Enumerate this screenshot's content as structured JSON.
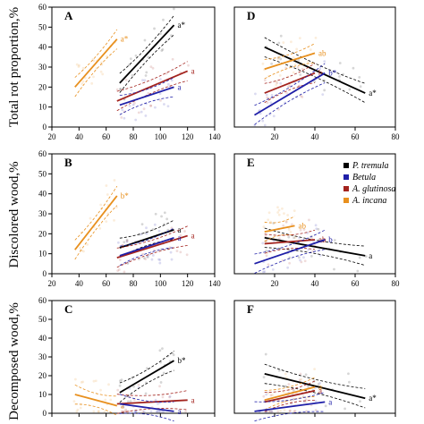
{
  "figure": {
    "ylabels": [
      "Total rot proportion,%",
      "Discolored wood,%",
      "Decomposed wood,%"
    ],
    "legend": [
      {
        "label": "P. tremula",
        "color": "#000000"
      },
      {
        "label": "Betula",
        "color": "#1f1fa8"
      },
      {
        "label": "A. glutinosa",
        "color": "#a3231e"
      },
      {
        "label": "A. incana",
        "color": "#e8901e"
      }
    ]
  },
  "chart_data": [
    {
      "panel": "A",
      "type": "scatter",
      "xlim": [
        20,
        140
      ],
      "ylim": [
        0,
        60
      ],
      "xticks": [
        "20",
        "40",
        "60",
        "80",
        "100",
        "120",
        "140"
      ],
      "yticks": [
        "0",
        "10",
        "20",
        "30",
        "40",
        "50",
        "60"
      ],
      "series": [
        {
          "name": "A. incana",
          "color": "#e8901e",
          "x": [
            37,
            68
          ],
          "y": [
            20,
            44
          ],
          "sig": "a*"
        },
        {
          "name": "P. tremula",
          "color": "#000000",
          "x": [
            70,
            110
          ],
          "y": [
            22,
            51
          ],
          "sig": "a*"
        },
        {
          "name": "A. glutinosa",
          "color": "#a3231e",
          "x": [
            68,
            120
          ],
          "y": [
            13,
            28
          ],
          "sig": "a"
        },
        {
          "name": "Betula",
          "color": "#1f1fa8",
          "x": [
            70,
            110
          ],
          "y": [
            11,
            20
          ],
          "sig": "a"
        }
      ]
    },
    {
      "panel": "D",
      "type": "scatter",
      "xlim": [
        0,
        80
      ],
      "ylim": [
        0,
        60
      ],
      "xticks": [
        "20",
        "40",
        "60",
        "80"
      ],
      "yticks": [],
      "series": [
        {
          "name": "P. tremula",
          "color": "#000000",
          "x": [
            15,
            65
          ],
          "y": [
            40,
            17
          ],
          "sig": "a*"
        },
        {
          "name": "A. incana",
          "color": "#e8901e",
          "x": [
            15,
            40
          ],
          "y": [
            29,
            37
          ],
          "sig": "ab"
        },
        {
          "name": "A. glutinosa",
          "color": "#a3231e",
          "x": [
            15,
            40
          ],
          "y": [
            17,
            27
          ],
          "sig": "b"
        },
        {
          "name": "Betula",
          "color": "#1f1fa8",
          "x": [
            10,
            45
          ],
          "y": [
            6,
            27
          ],
          "sig": "b*"
        }
      ]
    },
    {
      "panel": "B",
      "type": "scatter",
      "xlim": [
        20,
        140
      ],
      "ylim": [
        0,
        60
      ],
      "xticks": [
        "20",
        "40",
        "60",
        "80",
        "100",
        "120",
        "140"
      ],
      "yticks": [
        "0",
        "10",
        "20",
        "30",
        "40",
        "50",
        "60"
      ],
      "series": [
        {
          "name": "A. incana",
          "color": "#e8901e",
          "x": [
            37,
            68
          ],
          "y": [
            12,
            39
          ],
          "sig": "b*"
        },
        {
          "name": "P. tremula",
          "color": "#000000",
          "x": [
            70,
            110
          ],
          "y": [
            13,
            22
          ],
          "sig": "a"
        },
        {
          "name": "A. glutinosa",
          "color": "#a3231e",
          "x": [
            68,
            120
          ],
          "y": [
            8,
            19
          ],
          "sig": "a"
        },
        {
          "name": "Betula",
          "color": "#1f1fa8",
          "x": [
            70,
            110
          ],
          "y": [
            9,
            18
          ],
          "sig": "a"
        }
      ]
    },
    {
      "panel": "E",
      "type": "scatter",
      "xlim": [
        0,
        80
      ],
      "ylim": [
        0,
        60
      ],
      "xticks": [
        "20",
        "40",
        "60",
        "80"
      ],
      "yticks": [],
      "series": [
        {
          "name": "P. tremula",
          "color": "#000000",
          "x": [
            15,
            65
          ],
          "y": [
            18,
            9
          ],
          "sig": "a"
        },
        {
          "name": "A. incana",
          "color": "#e8901e",
          "x": [
            15,
            30
          ],
          "y": [
            21,
            24
          ],
          "sig": "ab"
        },
        {
          "name": "A. glutinosa",
          "color": "#a3231e",
          "x": [
            15,
            40
          ],
          "y": [
            15,
            17
          ],
          "sig": "ab"
        },
        {
          "name": "Betula",
          "color": "#1f1fa8",
          "x": [
            10,
            45
          ],
          "y": [
            5,
            17
          ],
          "sig": "b"
        }
      ]
    },
    {
      "panel": "C",
      "type": "scatter",
      "xlim": [
        20,
        140
      ],
      "ylim": [
        0,
        60
      ],
      "xticks": [],
      "yticks": [
        "0",
        "10",
        "20",
        "30",
        "40",
        "50",
        "60"
      ],
      "series": [
        {
          "name": "A. incana",
          "color": "#e8901e",
          "x": [
            37,
            68
          ],
          "y": [
            10,
            4
          ],
          "sig": "a"
        },
        {
          "name": "P. tremula",
          "color": "#000000",
          "x": [
            70,
            110
          ],
          "y": [
            11,
            28
          ],
          "sig": "b*"
        },
        {
          "name": "A. glutinosa",
          "color": "#a3231e",
          "x": [
            68,
            120
          ],
          "y": [
            5,
            7
          ],
          "sig": "a"
        },
        {
          "name": "Betula",
          "color": "#1f1fa8",
          "x": [
            70,
            110
          ],
          "y": [
            5,
            1
          ],
          "sig": "a"
        }
      ]
    },
    {
      "panel": "F",
      "type": "scatter",
      "xlim": [
        0,
        80
      ],
      "ylim": [
        0,
        60
      ],
      "xticks": [],
      "yticks": [],
      "series": [
        {
          "name": "P. tremula",
          "color": "#000000",
          "x": [
            15,
            65
          ],
          "y": [
            21,
            8
          ],
          "sig": "a*"
        },
        {
          "name": "A. incana",
          "color": "#e8901e",
          "x": [
            15,
            40
          ],
          "y": [
            7,
            14
          ],
          "sig": "a"
        },
        {
          "name": "A. glutinosa",
          "color": "#a3231e",
          "x": [
            15,
            40
          ],
          "y": [
            6,
            12
          ],
          "sig": "a"
        },
        {
          "name": "Betula",
          "color": "#1f1fa8",
          "x": [
            10,
            45
          ],
          "y": [
            1,
            6
          ],
          "sig": "a"
        }
      ]
    }
  ]
}
